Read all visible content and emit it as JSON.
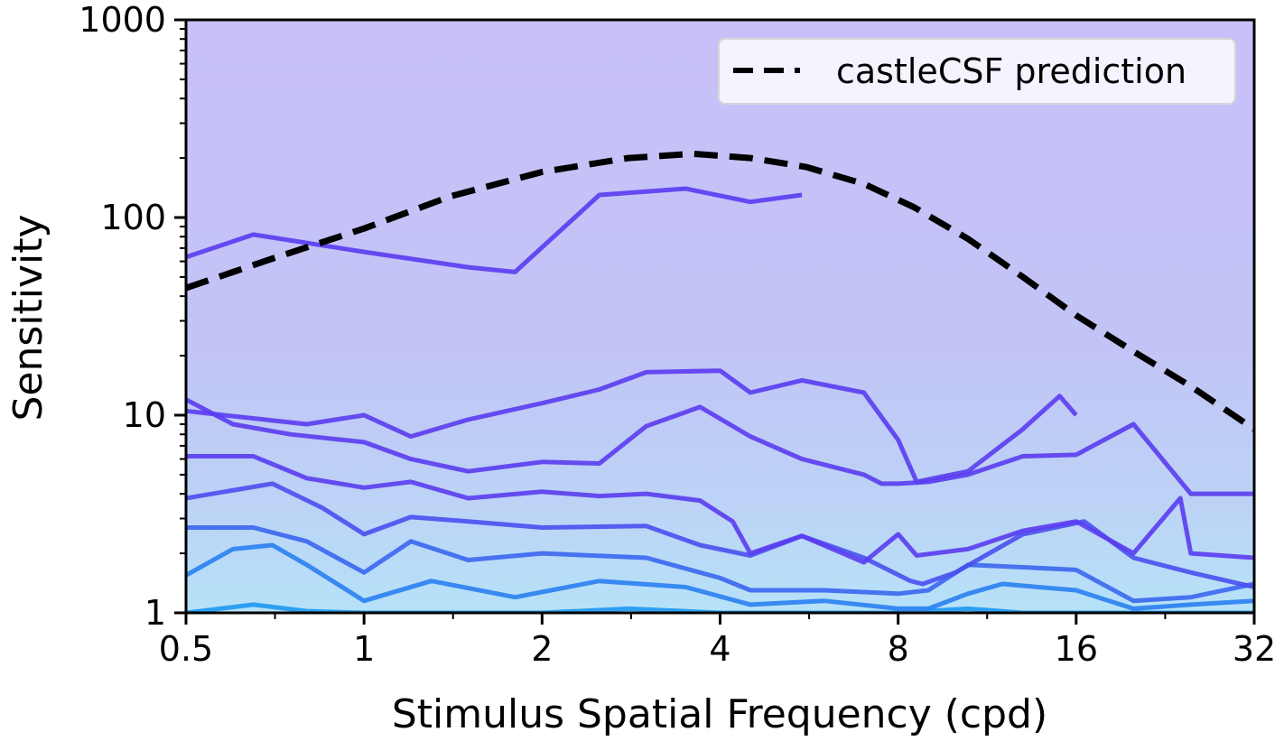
{
  "chart_data": {
    "type": "contour",
    "xlabel": "Stimulus Spatial Frequency (cpd)",
    "ylabel": "Sensitivity",
    "x_scale": "log2",
    "y_scale": "log10",
    "xlim": [
      0.5,
      32
    ],
    "ylim": [
      1,
      1000
    ],
    "x_ticks": [
      0.5,
      1,
      2,
      4,
      8,
      16,
      32
    ],
    "x_tick_labels": [
      "0.5",
      "1",
      "2",
      "4",
      "8",
      "16",
      "32"
    ],
    "y_ticks": [
      1,
      10,
      100,
      1000
    ],
    "y_tick_labels": [
      "1",
      "10",
      "100",
      "1000"
    ],
    "grid": false,
    "legend_position": "top-right",
    "colormap": [
      "#b6e2f8",
      "#bcd3f6",
      "#c2c4f6",
      "#c8bdf8"
    ],
    "contour_colors": [
      "#1e98f0",
      "#2a7fef",
      "#3b66ee",
      "#4a4ff0",
      "#5a3cf0"
    ],
    "series": [
      {
        "name": "castleCSF prediction",
        "style": "dashed",
        "color": "#000000",
        "x": [
          0.5,
          0.7,
          1.0,
          1.4,
          2.0,
          2.8,
          3.6,
          4.5,
          5.6,
          7.0,
          8.5,
          10.5,
          13.0,
          16.0,
          20.0,
          25.0,
          32.0
        ],
        "y": [
          44,
          62,
          88,
          128,
          170,
          200,
          210,
          200,
          180,
          148,
          113,
          78,
          50,
          32,
          21,
          14,
          8.5
        ]
      }
    ],
    "contours": [
      {
        "level": 1,
        "x": [
          0.5,
          0.65,
          0.8,
          1.0,
          1.4,
          2.0,
          2.8,
          4.0,
          5.6,
          8.0,
          10.5,
          13.0,
          16.0,
          20.0,
          25.0,
          32.0
        ],
        "y": [
          1.0,
          1.1,
          1.02,
          1.0,
          1.0,
          1.0,
          1.05,
          1.0,
          1.0,
          1.0,
          1.05,
          1.0,
          1.0,
          1.0,
          1.0,
          1.0
        ]
      },
      {
        "level": 2,
        "x": [
          0.5,
          0.6,
          0.7,
          0.8,
          1.0,
          1.3,
          1.8,
          2.5,
          3.5,
          4.5,
          6.0,
          8.0,
          9.0,
          10.5,
          12.0,
          16.0,
          20.0,
          25.0,
          32.0
        ],
        "y": [
          1.55,
          2.1,
          2.2,
          1.75,
          1.15,
          1.45,
          1.2,
          1.45,
          1.35,
          1.1,
          1.15,
          1.05,
          1.05,
          1.25,
          1.4,
          1.3,
          1.05,
          1.1,
          1.15
        ]
      },
      {
        "level": 3,
        "x": [
          0.5,
          0.65,
          0.8,
          1.0,
          1.2,
          1.5,
          2.0,
          3.0,
          4.0,
          4.5,
          6.0,
          8.0,
          9.0,
          10.5,
          13.0,
          16.0,
          20.0,
          25.0,
          32.0
        ],
        "y": [
          2.7,
          2.7,
          2.3,
          1.6,
          2.3,
          1.85,
          2.0,
          1.9,
          1.5,
          1.3,
          1.3,
          1.25,
          1.3,
          1.75,
          1.7,
          1.65,
          1.15,
          1.2,
          1.4
        ]
      },
      {
        "level": 4,
        "x": [
          0.5,
          0.7,
          0.85,
          1.0,
          1.2,
          1.5,
          2.0,
          3.0,
          3.7,
          4.5,
          5.5,
          7.0,
          8.4,
          8.8,
          10.0,
          13.0,
          16.5,
          20.0,
          25.0,
          32.0
        ],
        "y": [
          3.8,
          4.5,
          3.4,
          2.5,
          3.05,
          2.9,
          2.7,
          2.75,
          2.2,
          1.95,
          2.45,
          1.9,
          1.45,
          1.4,
          1.6,
          2.5,
          2.9,
          1.9,
          1.6,
          1.35
        ]
      },
      {
        "level": 5,
        "x": [
          0.5,
          0.65,
          0.8,
          1.0,
          1.2,
          1.5,
          2.0,
          2.5,
          3.0,
          3.7,
          4.2,
          4.5,
          5.5,
          7.0,
          8.0,
          8.6,
          10.5,
          13.0,
          16.0,
          20.0,
          24.0,
          25.0,
          32.0
        ],
        "y": [
          6.2,
          6.2,
          4.8,
          4.3,
          4.6,
          3.8,
          4.1,
          3.9,
          4.0,
          3.7,
          2.9,
          2.0,
          2.45,
          1.8,
          2.5,
          1.95,
          2.1,
          2.6,
          2.9,
          2.0,
          3.8,
          2.0,
          1.9
        ]
      },
      {
        "level": 6,
        "x": [
          0.5,
          0.6,
          0.75,
          1.0,
          1.2,
          1.5,
          2.0,
          2.5,
          3.0,
          3.7,
          4.5,
          5.5,
          7.0,
          7.5,
          8.0,
          9.0,
          10.5,
          13.0,
          16.0,
          20.0,
          25.0,
          32.0
        ],
        "y": [
          12.0,
          9.0,
          8.0,
          7.3,
          6.0,
          5.2,
          5.8,
          5.7,
          8.8,
          11.0,
          7.8,
          6.0,
          5.0,
          4.5,
          4.5,
          4.6,
          5.0,
          6.2,
          6.3,
          9.0,
          4.0,
          4.0
        ]
      },
      {
        "level": 7,
        "x": [
          0.5,
          0.8,
          1.0,
          1.2,
          1.5,
          2.0,
          2.5,
          3.0,
          4.0,
          4.5,
          5.5,
          7.0,
          8.0,
          8.6,
          10.5,
          13.0,
          15.0,
          16.0
        ],
        "y": [
          10.5,
          9.0,
          10.0,
          7.8,
          9.5,
          11.5,
          13.5,
          16.5,
          16.8,
          13.0,
          15.0,
          13.0,
          7.5,
          4.6,
          5.2,
          8.5,
          12.5,
          10.0
        ]
      },
      {
        "level": 8,
        "x": [
          0.5,
          0.65,
          1.0,
          1.5,
          1.8,
          2.5,
          3.5,
          4.5,
          5.5
        ],
        "y": [
          63,
          82,
          67,
          56,
          53,
          130,
          140,
          120,
          130
        ]
      }
    ]
  }
}
